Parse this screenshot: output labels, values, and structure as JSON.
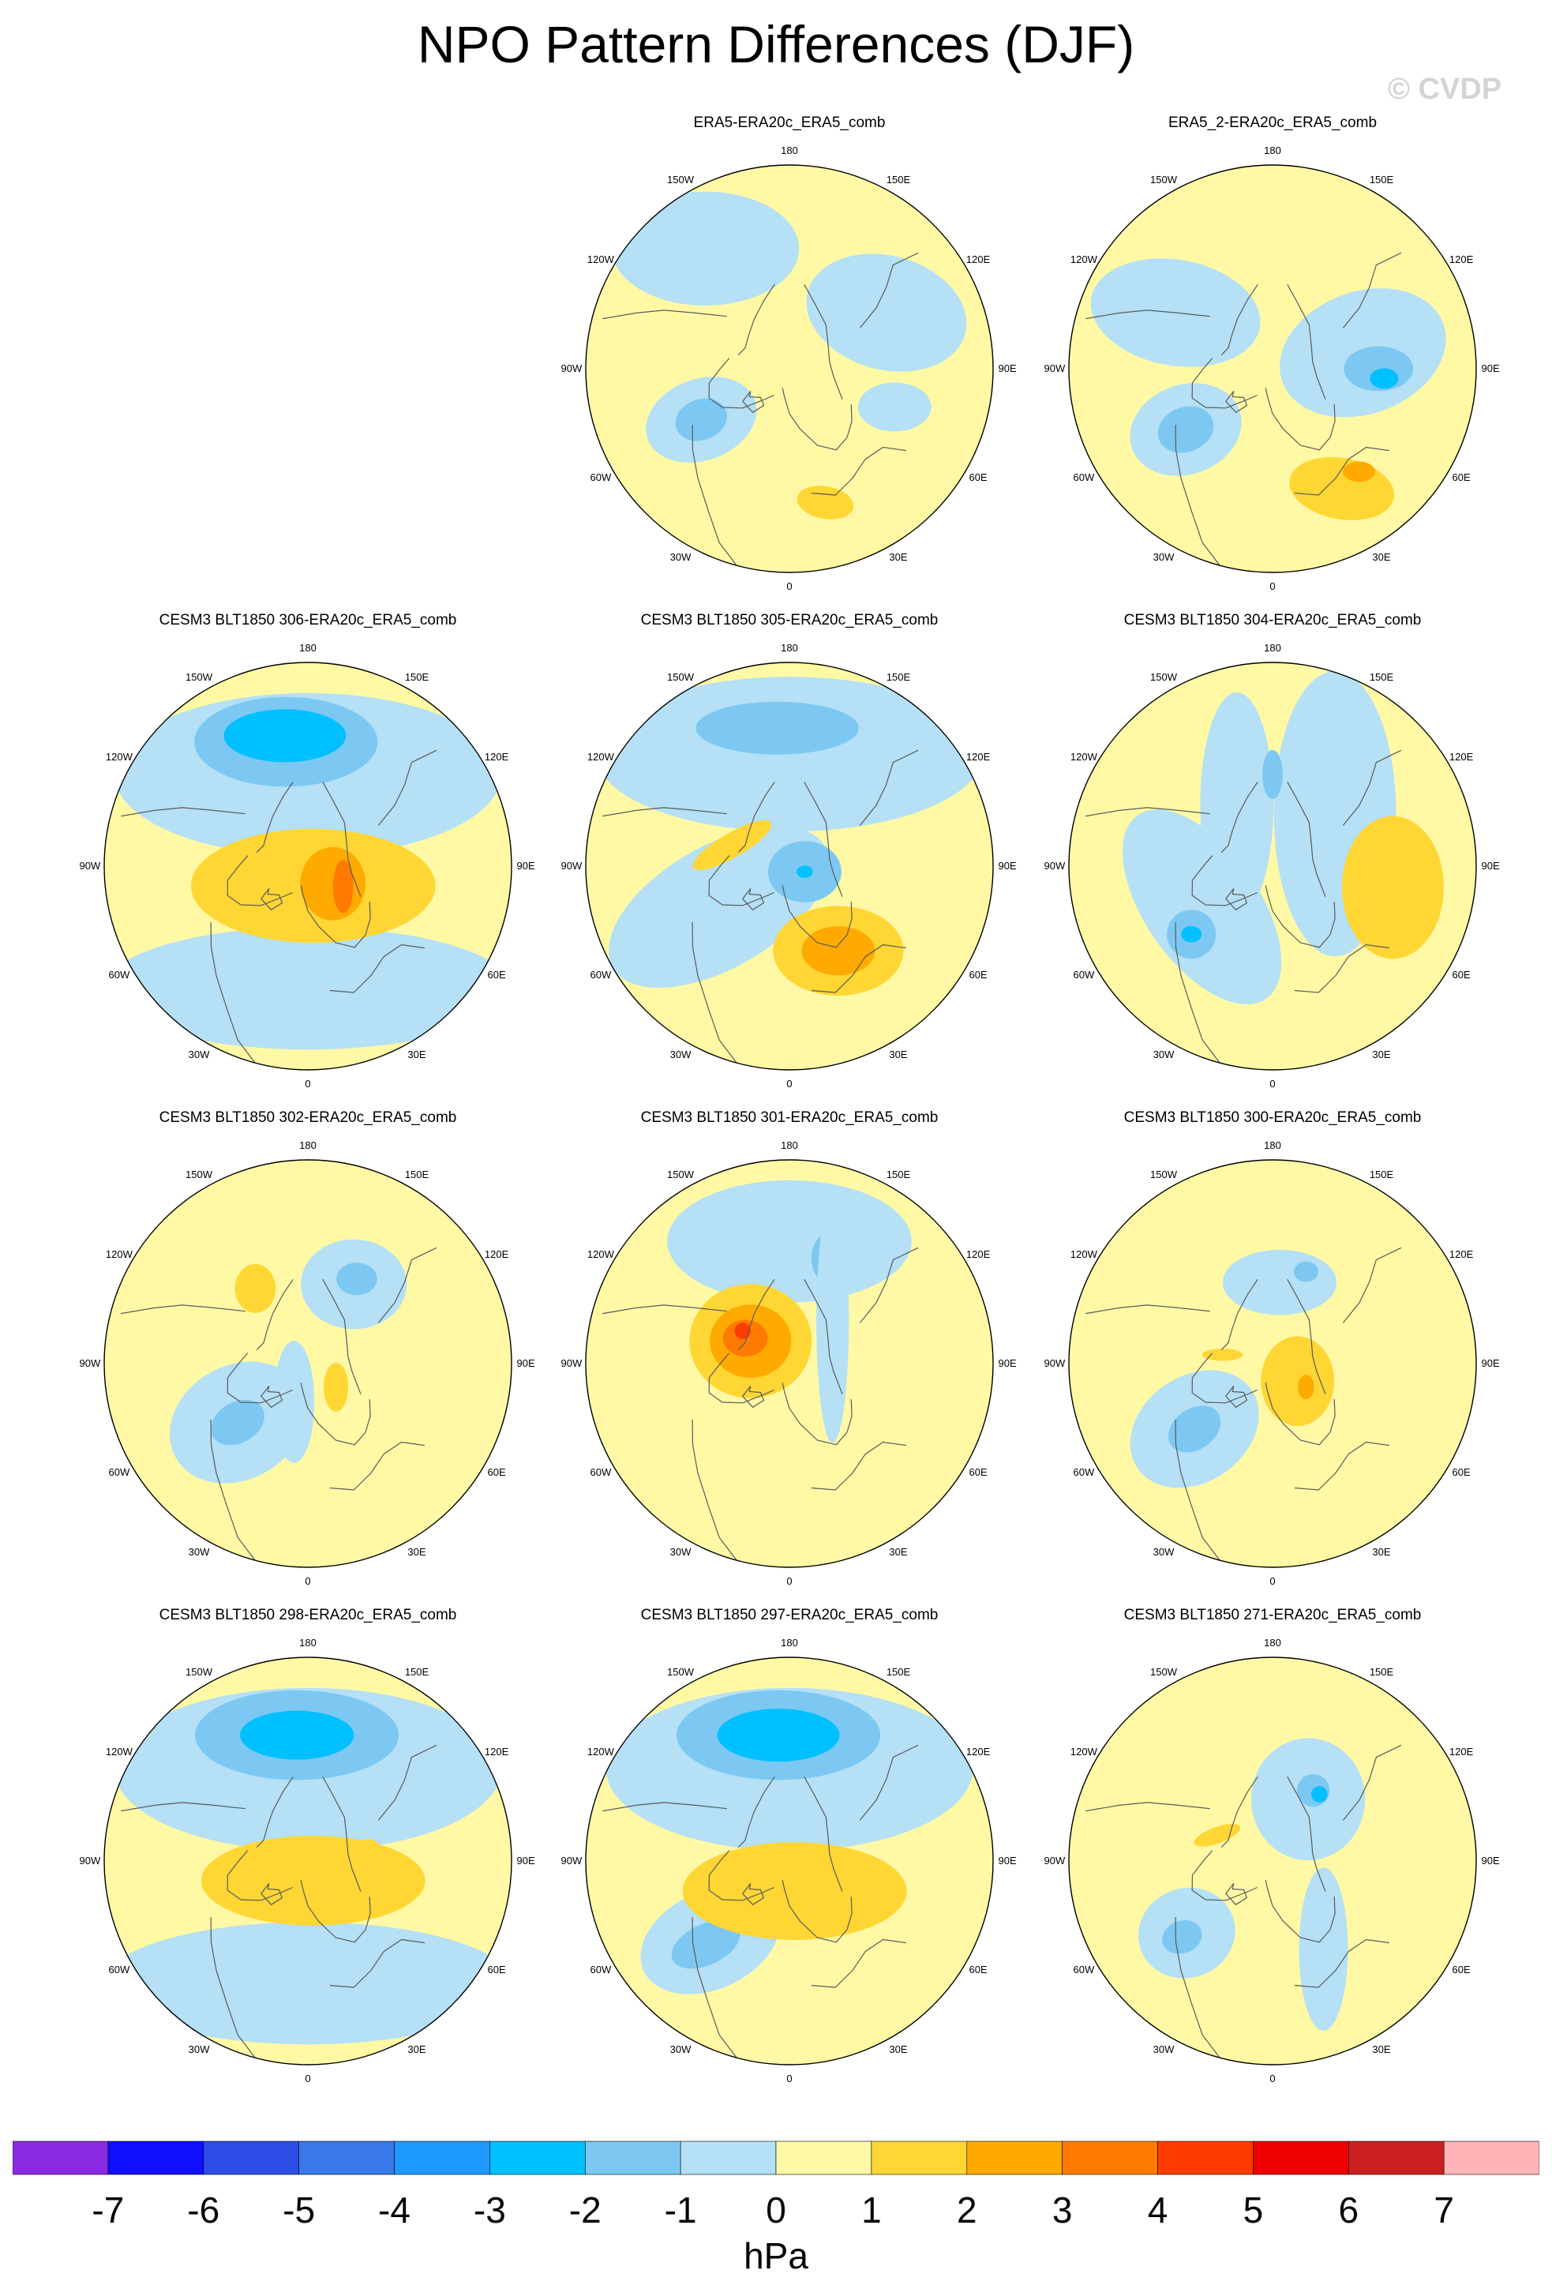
{
  "title": "NPO Pattern Differences (DJF)",
  "watermark": "© CVDP",
  "lon_labels": [
    "180",
    "150E",
    "120E",
    "90E",
    "60E",
    "30E",
    "0",
    "30W",
    "60W",
    "90W",
    "120W",
    "150W"
  ],
  "colors": {
    "map_background": "#fff9a6",
    "coastline": "#5a5a5a",
    "border": "#000000"
  },
  "panels": [
    {
      "title": "ERA5-ERA20c_ERA5_comb",
      "anomalies": [
        {
          "lon": 120,
          "r": 0.55,
          "level": -1,
          "sx": 0.4,
          "sy": 0.28,
          "rot": 15
        },
        {
          "lon": 215,
          "r": 0.72,
          "level": -1,
          "sx": 0.46,
          "sy": 0.28,
          "rot": 0
        },
        {
          "lon": 300,
          "r": 0.5,
          "level": -1,
          "sx": 0.28,
          "sy": 0.2,
          "rot": -20
        },
        {
          "lon": 300,
          "r": 0.5,
          "level": -2,
          "sx": 0.13,
          "sy": 0.1,
          "rot": -20
        },
        {
          "lon": 15,
          "r": 0.68,
          "level": 1,
          "sx": 0.14,
          "sy": 0.08,
          "rot": 10
        },
        {
          "lon": 70,
          "r": 0.55,
          "level": -1,
          "sx": 0.18,
          "sy": 0.12,
          "rot": 0
        }
      ]
    },
    {
      "title": "ERA5_2-ERA20c_ERA5_comb",
      "anomalies": [
        {
          "lon": 100,
          "r": 0.45,
          "level": -1,
          "sx": 0.42,
          "sy": 0.3,
          "rot": -20
        },
        {
          "lon": 90,
          "r": 0.52,
          "level": -2,
          "sx": 0.17,
          "sy": 0.11,
          "rot": 0
        },
        {
          "lon": 85,
          "r": 0.55,
          "level": -3,
          "sx": 0.07,
          "sy": 0.05,
          "rot": 0
        },
        {
          "lon": 240,
          "r": 0.55,
          "level": -1,
          "sx": 0.42,
          "sy": 0.26,
          "rot": 10
        },
        {
          "lon": 305,
          "r": 0.52,
          "level": -1,
          "sx": 0.28,
          "sy": 0.22,
          "rot": -20
        },
        {
          "lon": 305,
          "r": 0.52,
          "level": -2,
          "sx": 0.14,
          "sy": 0.11,
          "rot": -20
        },
        {
          "lon": 30,
          "r": 0.68,
          "level": 1,
          "sx": 0.26,
          "sy": 0.15,
          "rot": 10
        },
        {
          "lon": 40,
          "r": 0.66,
          "level": 2,
          "sx": 0.08,
          "sy": 0.05,
          "rot": 0
        }
      ]
    },
    {
      "title": "CESM3 BLT1850 306-ERA20c_ERA5_comb",
      "anomalies": [
        {
          "lon": 180,
          "r": 0.45,
          "level": -1,
          "sx": 0.95,
          "sy": 0.4,
          "rot": 0
        },
        {
          "lon": 190,
          "r": 0.62,
          "level": -2,
          "sx": 0.45,
          "sy": 0.22,
          "rot": 0
        },
        {
          "lon": 190,
          "r": 0.65,
          "level": -3,
          "sx": 0.3,
          "sy": 0.13,
          "rot": 0
        },
        {
          "lon": 0,
          "r": 0.6,
          "level": -1,
          "sx": 1.0,
          "sy": 0.3,
          "rot": 0
        },
        {
          "lon": 15,
          "r": 0.1,
          "level": 1,
          "sx": 0.6,
          "sy": 0.28,
          "rot": 0
        },
        {
          "lon": 55,
          "r": 0.15,
          "level": 2,
          "sx": 0.16,
          "sy": 0.18,
          "rot": 0
        },
        {
          "lon": 60,
          "r": 0.2,
          "level": 3,
          "sx": 0.05,
          "sy": 0.13,
          "rot": 0
        }
      ]
    },
    {
      "title": "CESM3 BLT1850 305-ERA20c_ERA5_comb",
      "anomalies": [
        {
          "lon": 180,
          "r": 0.55,
          "level": -1,
          "sx": 0.95,
          "sy": 0.38,
          "rot": 0
        },
        {
          "lon": 185,
          "r": 0.68,
          "level": -2,
          "sx": 0.4,
          "sy": 0.13,
          "rot": 0
        },
        {
          "lon": 300,
          "r": 0.4,
          "level": -1,
          "sx": 0.6,
          "sy": 0.3,
          "rot": -30
        },
        {
          "lon": 70,
          "r": 0.08,
          "level": -2,
          "sx": 0.18,
          "sy": 0.15,
          "rot": 0
        },
        {
          "lon": 70,
          "r": 0.08,
          "level": -3,
          "sx": 0.04,
          "sy": 0.03,
          "rot": 0
        },
        {
          "lon": 30,
          "r": 0.48,
          "level": 1,
          "sx": 0.32,
          "sy": 0.22,
          "rot": 0
        },
        {
          "lon": 30,
          "r": 0.48,
          "level": 2,
          "sx": 0.18,
          "sy": 0.12,
          "rot": 0
        },
        {
          "lon": 250,
          "r": 0.3,
          "level": 1,
          "sx": 0.22,
          "sy": 0.06,
          "rot": -30
        }
      ]
    },
    {
      "title": "CESM3 BLT1850 304-ERA20c_ERA5_comb",
      "anomalies": [
        {
          "lon": 130,
          "r": 0.4,
          "level": -1,
          "sx": 0.3,
          "sy": 0.7,
          "rot": 0
        },
        {
          "lon": 300,
          "r": 0.4,
          "level": -1,
          "sx": 0.28,
          "sy": 0.55,
          "rot": -35
        },
        {
          "lon": 210,
          "r": 0.35,
          "level": -1,
          "sx": 0.18,
          "sy": 0.55,
          "rot": 0
        },
        {
          "lon": 310,
          "r": 0.52,
          "level": -2,
          "sx": 0.12,
          "sy": 0.12,
          "rot": 0
        },
        {
          "lon": 310,
          "r": 0.52,
          "level": -3,
          "sx": 0.05,
          "sy": 0.04,
          "rot": 0
        },
        {
          "lon": 180,
          "r": 0.45,
          "level": -2,
          "sx": 0.05,
          "sy": 0.12,
          "rot": 0
        },
        {
          "lon": 80,
          "r": 0.6,
          "level": 1,
          "sx": 0.25,
          "sy": 0.35,
          "rot": 0
        }
      ]
    },
    {
      "title": "CESM3 BLT1850 302-ERA20c_ERA5_comb",
      "anomalies": [
        {
          "lon": 150,
          "r": 0.45,
          "level": -1,
          "sx": 0.26,
          "sy": 0.22,
          "rot": 0
        },
        {
          "lon": 150,
          "r": 0.48,
          "level": -2,
          "sx": 0.1,
          "sy": 0.08,
          "rot": 0
        },
        {
          "lon": 310,
          "r": 0.45,
          "level": -1,
          "sx": 0.35,
          "sy": 0.28,
          "rot": -30
        },
        {
          "lon": 310,
          "r": 0.45,
          "level": -2,
          "sx": 0.14,
          "sy": 0.1,
          "rot": -30
        },
        {
          "lon": 340,
          "r": 0.2,
          "level": -1,
          "sx": 0.1,
          "sy": 0.3,
          "rot": 0
        },
        {
          "lon": 215,
          "r": 0.45,
          "level": 1,
          "sx": 0.1,
          "sy": 0.12,
          "rot": 0
        },
        {
          "lon": 50,
          "r": 0.18,
          "level": 1,
          "sx": 0.06,
          "sy": 0.12,
          "rot": 0
        }
      ]
    },
    {
      "title": "CESM3 BLT1850 301-ERA20c_ERA5_comb",
      "anomalies": [
        {
          "lon": 180,
          "r": 0.6,
          "level": -1,
          "sx": 0.6,
          "sy": 0.3,
          "rot": 0
        },
        {
          "lon": 160,
          "r": 0.55,
          "level": -2,
          "sx": 0.08,
          "sy": 0.12,
          "rot": 0
        },
        {
          "lon": 135,
          "r": 0.3,
          "level": -1,
          "sx": 0.08,
          "sy": 0.6,
          "rot": 0
        },
        {
          "lon": 240,
          "r": 0.22,
          "level": 1,
          "sx": 0.3,
          "sy": 0.28,
          "rot": 0
        },
        {
          "lon": 240,
          "r": 0.22,
          "level": 2,
          "sx": 0.2,
          "sy": 0.18,
          "rot": 0
        },
        {
          "lon": 240,
          "r": 0.25,
          "level": 3,
          "sx": 0.11,
          "sy": 0.09,
          "rot": 0
        },
        {
          "lon": 235,
          "r": 0.28,
          "level": 4,
          "sx": 0.04,
          "sy": 0.04,
          "rot": 0
        }
      ]
    },
    {
      "title": "CESM3 BLT1850 300-ERA20c_ERA5_comb",
      "anomalies": [
        {
          "lon": 175,
          "r": 0.4,
          "level": -1,
          "sx": 0.28,
          "sy": 0.16,
          "rot": 0
        },
        {
          "lon": 160,
          "r": 0.48,
          "level": -2,
          "sx": 0.06,
          "sy": 0.05,
          "rot": 0
        },
        {
          "lon": 310,
          "r": 0.5,
          "level": -1,
          "sx": 0.34,
          "sy": 0.26,
          "rot": -35
        },
        {
          "lon": 310,
          "r": 0.5,
          "level": -2,
          "sx": 0.14,
          "sy": 0.1,
          "rot": -35
        },
        {
          "lon": 55,
          "r": 0.15,
          "level": 1,
          "sx": 0.18,
          "sy": 0.22,
          "rot": 0
        },
        {
          "lon": 55,
          "r": 0.2,
          "level": 2,
          "sx": 0.04,
          "sy": 0.06,
          "rot": 0
        },
        {
          "lon": 260,
          "r": 0.25,
          "level": 1,
          "sx": 0.1,
          "sy": 0.03,
          "rot": 0
        }
      ]
    },
    {
      "title": "CESM3 BLT1850 298-ERA20c_ERA5_comb",
      "anomalies": [
        {
          "lon": 180,
          "r": 0.45,
          "level": -1,
          "sx": 0.95,
          "sy": 0.4,
          "rot": 0
        },
        {
          "lon": 185,
          "r": 0.62,
          "level": -2,
          "sx": 0.5,
          "sy": 0.22,
          "rot": 0
        },
        {
          "lon": 185,
          "r": 0.62,
          "level": -3,
          "sx": 0.28,
          "sy": 0.12,
          "rot": 0
        },
        {
          "lon": 0,
          "r": 0.6,
          "level": -1,
          "sx": 1.0,
          "sy": 0.3,
          "rot": 0
        },
        {
          "lon": 15,
          "r": 0.1,
          "level": 1,
          "sx": 0.55,
          "sy": 0.22,
          "rot": 0
        },
        {
          "lon": 80,
          "r": 0.3,
          "level": 1,
          "sx": 0.1,
          "sy": 0.16,
          "rot": 0
        }
      ]
    },
    {
      "title": "CESM3 BLT1850 297-ERA20c_ERA5_comb",
      "anomalies": [
        {
          "lon": 180,
          "r": 0.45,
          "level": -1,
          "sx": 0.9,
          "sy": 0.4,
          "rot": 0
        },
        {
          "lon": 185,
          "r": 0.62,
          "level": -2,
          "sx": 0.5,
          "sy": 0.22,
          "rot": 0
        },
        {
          "lon": 185,
          "r": 0.62,
          "level": -3,
          "sx": 0.3,
          "sy": 0.13,
          "rot": 0
        },
        {
          "lon": 315,
          "r": 0.55,
          "level": -1,
          "sx": 0.36,
          "sy": 0.24,
          "rot": -25
        },
        {
          "lon": 315,
          "r": 0.58,
          "level": -2,
          "sx": 0.18,
          "sy": 0.1,
          "rot": -25
        },
        {
          "lon": 10,
          "r": 0.15,
          "level": 1,
          "sx": 0.55,
          "sy": 0.24,
          "rot": 0
        }
      ]
    },
    {
      "title": "CESM3 BLT1850 271-ERA20c_ERA5_comb",
      "anomalies": [
        {
          "lon": 150,
          "r": 0.35,
          "level": -1,
          "sx": 0.28,
          "sy": 0.3,
          "rot": 0
        },
        {
          "lon": 150,
          "r": 0.4,
          "level": -2,
          "sx": 0.08,
          "sy": 0.08,
          "rot": 0
        },
        {
          "lon": 145,
          "r": 0.4,
          "level": -3,
          "sx": 0.04,
          "sy": 0.04,
          "rot": 0
        },
        {
          "lon": 30,
          "r": 0.5,
          "level": -1,
          "sx": 0.12,
          "sy": 0.4,
          "rot": 0
        },
        {
          "lon": 310,
          "r": 0.55,
          "level": -1,
          "sx": 0.24,
          "sy": 0.22,
          "rot": -20
        },
        {
          "lon": 310,
          "r": 0.58,
          "level": -2,
          "sx": 0.1,
          "sy": 0.08,
          "rot": -20
        },
        {
          "lon": 245,
          "r": 0.3,
          "level": 1,
          "sx": 0.12,
          "sy": 0.04,
          "rot": -20
        }
      ]
    }
  ],
  "colorbar": {
    "unit": "hPa",
    "tick_labels": [
      "-7",
      "-6",
      "-5",
      "-4",
      "-3",
      "-2",
      "-1",
      "0",
      "1",
      "2",
      "3",
      "4",
      "5",
      "6",
      "7"
    ],
    "colors": [
      "#8a2be2",
      "#1010ff",
      "#2d4ee6",
      "#3a78e8",
      "#1e9aff",
      "#00c0ff",
      "#7cc8f2",
      "#b5e0f5",
      "#fff9a6",
      "#ffd633",
      "#ffaa00",
      "#ff7a00",
      "#ff3c00",
      "#ee0000",
      "#cc2020",
      "#ffb5b8"
    ]
  }
}
